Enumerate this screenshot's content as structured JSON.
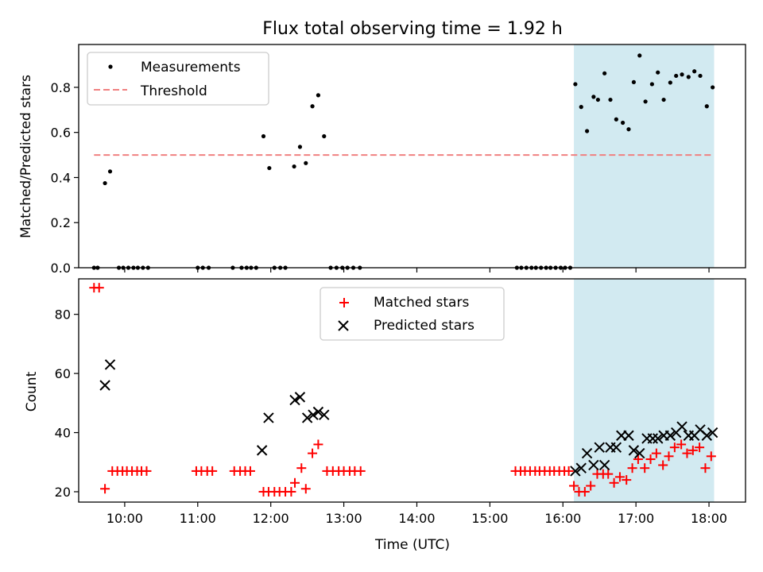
{
  "chart_data": [
    {
      "type": "scatter",
      "title": "Flux total observing time = 1.92 h",
      "ylabel": "Matched/Predicted stars",
      "xlabel": "",
      "xlim": [
        9.37,
        18.5
      ],
      "ylim": [
        0,
        0.99
      ],
      "yticks": [
        0.0,
        0.2,
        0.4,
        0.6,
        0.8
      ],
      "ytick_labels": [
        "0.0",
        "0.2",
        "0.4",
        "0.6",
        "0.8"
      ],
      "xticks": [
        10,
        11,
        12,
        13,
        14,
        15,
        16,
        17,
        18
      ],
      "shaded_region": {
        "x": [
          16.15,
          18.07
        ],
        "color": "#add8e6"
      },
      "legend": {
        "location": "upper left",
        "entries": [
          "Measurements",
          "Threshold"
        ]
      },
      "series": [
        {
          "name": "Measurements",
          "color": "#000000",
          "marker": "dot",
          "points": [
            [
              9.58,
              0
            ],
            [
              9.63,
              0
            ],
            [
              9.73,
              0.375
            ],
            [
              9.8,
              0.427
            ],
            [
              9.92,
              0
            ],
            [
              9.98,
              0
            ],
            [
              10.05,
              0
            ],
            [
              10.12,
              0
            ],
            [
              10.18,
              0
            ],
            [
              10.25,
              0
            ],
            [
              10.32,
              0
            ],
            [
              11.0,
              0
            ],
            [
              11.07,
              0
            ],
            [
              11.15,
              0
            ],
            [
              11.48,
              0
            ],
            [
              11.6,
              0
            ],
            [
              11.67,
              0
            ],
            [
              11.73,
              0
            ],
            [
              11.8,
              0
            ],
            [
              11.9,
              0.583
            ],
            [
              11.98,
              0.442
            ],
            [
              12.05,
              0
            ],
            [
              12.13,
              0
            ],
            [
              12.2,
              0
            ],
            [
              12.32,
              0.449
            ],
            [
              12.4,
              0.536
            ],
            [
              12.48,
              0.464
            ],
            [
              12.57,
              0.716
            ],
            [
              12.65,
              0.765
            ],
            [
              12.73,
              0.583
            ],
            [
              12.82,
              0
            ],
            [
              12.9,
              0
            ],
            [
              12.98,
              0
            ],
            [
              13.05,
              0
            ],
            [
              13.13,
              0
            ],
            [
              13.22,
              0
            ],
            [
              15.37,
              0
            ],
            [
              15.43,
              0
            ],
            [
              15.5,
              0
            ],
            [
              15.57,
              0
            ],
            [
              15.63,
              0
            ],
            [
              15.7,
              0
            ],
            [
              15.77,
              0
            ],
            [
              15.83,
              0
            ],
            [
              15.9,
              0
            ],
            [
              15.97,
              0
            ],
            [
              16.03,
              0
            ],
            [
              16.1,
              0
            ],
            [
              16.17,
              0.814
            ],
            [
              16.25,
              0.713
            ],
            [
              16.33,
              0.606
            ],
            [
              16.42,
              0.758
            ],
            [
              16.48,
              0.745
            ],
            [
              16.57,
              0.862
            ],
            [
              16.65,
              0.745
            ],
            [
              16.73,
              0.658
            ],
            [
              16.82,
              0.643
            ],
            [
              16.9,
              0.614
            ],
            [
              16.97,
              0.823
            ],
            [
              17.05,
              0.941
            ],
            [
              17.13,
              0.737
            ],
            [
              17.22,
              0.814
            ],
            [
              17.3,
              0.866
            ],
            [
              17.38,
              0.745
            ],
            [
              17.47,
              0.821
            ],
            [
              17.55,
              0.851
            ],
            [
              17.63,
              0.857
            ],
            [
              17.72,
              0.846
            ],
            [
              17.8,
              0.871
            ],
            [
              17.88,
              0.851
            ],
            [
              17.97,
              0.716
            ],
            [
              18.05,
              0.8
            ]
          ]
        },
        {
          "name": "Threshold",
          "color": "#f08080",
          "line": "dashed",
          "x": [
            9.58,
            18.05
          ],
          "y": [
            0.5,
            0.5
          ]
        }
      ]
    },
    {
      "type": "scatter",
      "xlabel": "Time (UTC)",
      "ylabel": "Count",
      "xlim": [
        9.37,
        18.5
      ],
      "ylim": [
        16.5,
        92
      ],
      "yticks": [
        20,
        40,
        60,
        80
      ],
      "ytick_labels": [
        "20",
        "40",
        "60",
        "80"
      ],
      "xticks": [
        10,
        11,
        12,
        13,
        14,
        15,
        16,
        17,
        18
      ],
      "xtick_labels": [
        "10:00",
        "11:00",
        "12:00",
        "13:00",
        "14:00",
        "15:00",
        "16:00",
        "17:00",
        "18:00"
      ],
      "shaded_region": {
        "x": [
          16.15,
          18.07
        ],
        "color": "#add8e6"
      },
      "legend": {
        "location": "upper center",
        "entries": [
          "Matched stars",
          "Predicted stars"
        ]
      },
      "series": [
        {
          "name": "Matched stars",
          "color": "#ff0000",
          "marker": "plus",
          "points": [
            [
              9.58,
              89
            ],
            [
              9.65,
              89
            ],
            [
              9.73,
              21
            ],
            [
              9.83,
              27
            ],
            [
              9.9,
              27
            ],
            [
              9.97,
              27
            ],
            [
              10.03,
              27
            ],
            [
              10.1,
              27
            ],
            [
              10.17,
              27
            ],
            [
              10.23,
              27
            ],
            [
              10.3,
              27
            ],
            [
              10.98,
              27
            ],
            [
              11.05,
              27
            ],
            [
              11.13,
              27
            ],
            [
              11.2,
              27
            ],
            [
              11.5,
              27
            ],
            [
              11.58,
              27
            ],
            [
              11.65,
              27
            ],
            [
              11.72,
              27
            ],
            [
              11.9,
              20
            ],
            [
              11.97,
              20
            ],
            [
              12.05,
              20
            ],
            [
              12.12,
              20
            ],
            [
              12.2,
              20
            ],
            [
              12.28,
              20
            ],
            [
              12.33,
              23
            ],
            [
              12.42,
              28
            ],
            [
              12.48,
              21
            ],
            [
              12.57,
              33
            ],
            [
              12.65,
              36
            ],
            [
              12.77,
              27
            ],
            [
              12.85,
              27
            ],
            [
              12.93,
              27
            ],
            [
              13.0,
              27
            ],
            [
              13.08,
              27
            ],
            [
              13.15,
              27
            ],
            [
              13.23,
              27
            ],
            [
              15.35,
              27
            ],
            [
              15.42,
              27
            ],
            [
              15.48,
              27
            ],
            [
              15.55,
              27
            ],
            [
              15.62,
              27
            ],
            [
              15.68,
              27
            ],
            [
              15.75,
              27
            ],
            [
              15.82,
              27
            ],
            [
              15.88,
              27
            ],
            [
              15.95,
              27
            ],
            [
              16.02,
              27
            ],
            [
              16.08,
              27
            ],
            [
              16.15,
              22
            ],
            [
              16.22,
              20
            ],
            [
              16.3,
              20
            ],
            [
              16.38,
              22
            ],
            [
              16.47,
              26
            ],
            [
              16.55,
              26
            ],
            [
              16.62,
              26
            ],
            [
              16.7,
              23
            ],
            [
              16.78,
              25
            ],
            [
              16.87,
              24
            ],
            [
              16.95,
              28
            ],
            [
              17.03,
              31
            ],
            [
              17.12,
              28
            ],
            [
              17.2,
              31
            ],
            [
              17.28,
              33
            ],
            [
              17.37,
              29
            ],
            [
              17.45,
              32
            ],
            [
              17.53,
              35
            ],
            [
              17.62,
              36
            ],
            [
              17.7,
              33
            ],
            [
              17.78,
              34
            ],
            [
              17.87,
              35
            ],
            [
              17.95,
              28
            ],
            [
              18.03,
              32
            ]
          ]
        },
        {
          "name": "Predicted stars",
          "color": "#000000",
          "marker": "x",
          "points": [
            [
              9.73,
              56
            ],
            [
              9.8,
              63
            ],
            [
              11.88,
              34
            ],
            [
              11.97,
              45
            ],
            [
              12.33,
              51
            ],
            [
              12.4,
              52
            ],
            [
              12.5,
              45
            ],
            [
              12.58,
              46
            ],
            [
              12.65,
              47
            ],
            [
              12.73,
              46
            ],
            [
              16.17,
              27
            ],
            [
              16.25,
              28
            ],
            [
              16.33,
              33
            ],
            [
              16.42,
              29
            ],
            [
              16.5,
              35
            ],
            [
              16.57,
              29
            ],
            [
              16.65,
              35
            ],
            [
              16.73,
              35
            ],
            [
              16.8,
              39
            ],
            [
              16.9,
              39
            ],
            [
              16.97,
              34
            ],
            [
              17.05,
              33
            ],
            [
              17.15,
              38
            ],
            [
              17.23,
              38
            ],
            [
              17.3,
              38
            ],
            [
              17.38,
              39
            ],
            [
              17.47,
              39
            ],
            [
              17.55,
              40
            ],
            [
              17.63,
              42
            ],
            [
              17.72,
              39
            ],
            [
              17.8,
              39
            ],
            [
              17.88,
              41
            ],
            [
              17.97,
              39
            ],
            [
              18.05,
              40
            ]
          ]
        }
      ]
    }
  ]
}
